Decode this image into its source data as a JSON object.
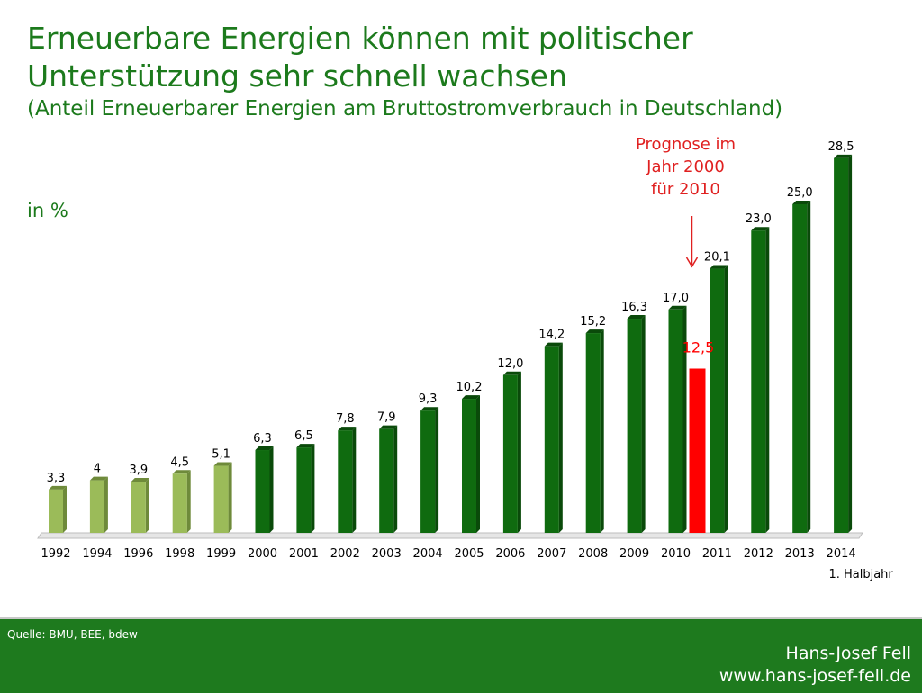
{
  "header": {
    "title_line1": "Erneuerbare Energien können mit politischer",
    "title_line2": "Unterstützung sehr schnell wachsen",
    "subtitle": "(Anteil Erneuerbarer Energien am Bruttostromverbrauch in Deutschland)"
  },
  "chart_data": {
    "type": "bar",
    "title": "Anteil Erneuerbarer Energien am Bruttostromverbrauch in Deutschland",
    "ylabel": "in %",
    "xlabel": "",
    "ylim": [
      0,
      30
    ],
    "categories": [
      "1992",
      "1994",
      "1996",
      "1998",
      "1999",
      "2000",
      "2001",
      "2002",
      "2003",
      "2004",
      "2005",
      "2006",
      "2007",
      "2008",
      "2009",
      "2010",
      "2011",
      "2012",
      "2013",
      "2014"
    ],
    "values": [
      3.3,
      4,
      3.9,
      4.5,
      5.1,
      6.3,
      6.5,
      7.8,
      7.9,
      9.3,
      10.2,
      12.0,
      14.2,
      15.2,
      16.3,
      17.0,
      20.1,
      23.0,
      25.0,
      28.5
    ],
    "value_labels": [
      "3,3",
      "4",
      "3,9",
      "4,5",
      "5,1",
      "6,3",
      "6,5",
      "7,8",
      "7,9",
      "9,3",
      "10,2",
      "12,0",
      "14,2",
      "15,2",
      "16,3",
      "17,0",
      "20,1",
      "23,0",
      "25,0",
      "28,5"
    ],
    "x_sublabel": "1. Halbjahr",
    "forecast": {
      "category": "2010",
      "value": 12.5,
      "label": "12,5",
      "annotation": [
        "Prognose im",
        "Jahr 2000",
        "für 2010"
      ]
    },
    "colors": {
      "early": "#9bbb59",
      "early_side": "#6e8a3a",
      "main": "#0f6b0f",
      "main_side": "#0a4a0a",
      "forecast": "#ff0000",
      "annotation": "#e02020",
      "floor": "#e6e6e6"
    }
  },
  "footer": {
    "source": "Quelle: BMU, BEE, bdew",
    "author": "Hans-Josef Fell",
    "website": "www.hans-josef-fell.de"
  }
}
